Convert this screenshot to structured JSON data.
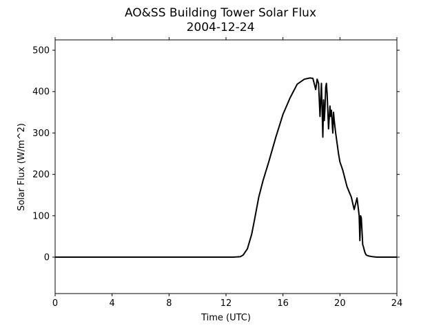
{
  "chart_data": {
    "type": "line",
    "title": "AO&SS Building Tower Solar Flux",
    "subtitle": "2004-12-24",
    "xlabel": "Time (UTC)",
    "ylabel": "Solar Flux (W/m^2)",
    "xlim": [
      0,
      24
    ],
    "ylim": [
      -88,
      525
    ],
    "xticks": [
      0,
      4,
      8,
      12,
      16,
      20,
      24
    ],
    "yticks": [
      0,
      100,
      200,
      300,
      400,
      500
    ],
    "grid": false,
    "line_color": "#000000",
    "series": [
      {
        "x": [
          0,
          12.5,
          13.0,
          13.2,
          13.5,
          13.8,
          14.0,
          14.3,
          14.6,
          15.0,
          15.5,
          16.0,
          16.5,
          17.0,
          17.5,
          17.9,
          18.1,
          18.3,
          18.4,
          18.5,
          18.6,
          18.7,
          18.8,
          18.85,
          18.9,
          18.95,
          19.0,
          19.05,
          19.1,
          19.2,
          19.3,
          19.35,
          19.4,
          19.5,
          19.55,
          19.6,
          19.7,
          19.8,
          19.9,
          20.0,
          20.2,
          20.5,
          20.8,
          21.0,
          21.2,
          21.3,
          21.35,
          21.4,
          21.45,
          21.5,
          21.6,
          21.65,
          21.7,
          21.75,
          21.8,
          21.85,
          22.0,
          22.3,
          22.6,
          23.0,
          24
        ],
        "y": [
          0,
          0,
          1,
          5,
          20,
          55,
          90,
          145,
          185,
          230,
          290,
          345,
          385,
          418,
          430,
          433,
          432,
          405,
          430,
          420,
          340,
          420,
          290,
          380,
          330,
          360,
          410,
          420,
          395,
          310,
          365,
          340,
          355,
          300,
          350,
          330,
          300,
          275,
          250,
          230,
          210,
          170,
          145,
          115,
          143,
          115,
          100,
          40,
          100,
          95,
          30,
          25,
          18,
          12,
          8,
          5,
          3,
          1,
          0,
          0,
          0
        ]
      }
    ]
  }
}
